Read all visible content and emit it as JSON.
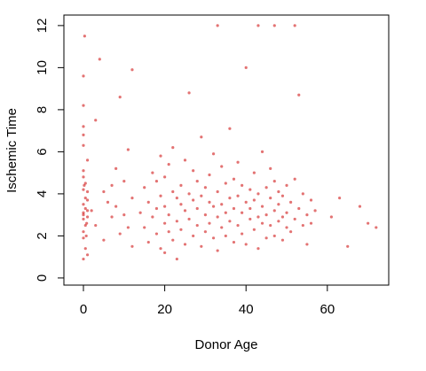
{
  "chart_data": {
    "type": "scatter",
    "xlabel": "Donor Age",
    "ylabel": "Ischemic Time",
    "xlim": [
      -4.8,
      75.1
    ],
    "ylim": [
      -0.34,
      12.5
    ],
    "xticks": [
      0,
      20,
      40,
      60
    ],
    "yticks": [
      0,
      2,
      4,
      6,
      8,
      10,
      12
    ],
    "x": [
      0,
      0,
      0,
      0,
      0,
      0,
      0,
      0,
      0,
      0,
      0.5,
      0.5,
      0.5,
      0.5,
      0.5,
      1,
      1,
      1,
      1,
      1,
      0,
      0,
      0.3,
      0.7,
      0,
      0,
      1,
      0.2,
      0.8,
      0,
      2,
      3,
      4,
      5,
      5,
      6,
      7,
      8,
      8,
      9,
      10,
      10,
      11,
      11,
      12,
      12,
      3,
      7,
      9,
      12,
      14,
      15,
      15,
      16,
      16,
      17,
      17,
      18,
      18,
      18,
      19,
      19,
      19,
      20,
      20,
      20,
      20,
      21,
      21,
      21,
      22,
      22,
      22,
      23,
      23,
      23,
      24,
      24,
      24,
      25,
      25,
      25,
      26,
      26,
      26,
      27,
      27,
      27,
      28,
      28,
      28,
      29,
      29,
      29,
      30,
      30,
      30,
      31,
      31,
      31,
      32,
      32,
      32,
      33,
      33,
      33,
      34,
      34,
      34,
      35,
      35,
      35,
      36,
      36,
      36,
      37,
      37,
      37,
      38,
      38,
      38,
      39,
      39,
      39,
      40,
      40,
      40,
      41,
      41,
      41,
      42,
      42,
      42,
      43,
      43,
      43,
      44,
      44,
      44,
      45,
      45,
      45,
      46,
      46,
      46,
      47,
      47,
      47,
      48,
      48,
      48,
      49,
      49,
      49,
      50,
      50,
      50,
      51,
      51,
      52,
      52,
      53,
      53,
      54,
      54,
      55,
      55,
      56,
      56,
      57,
      33,
      43,
      52,
      61,
      63,
      65,
      68,
      70,
      72,
      47
    ],
    "series": [
      {
        "color": "#cc0000",
        "values": [
          3.5,
          4.2,
          2.8,
          1.9,
          5.1,
          6.3,
          3.1,
          2.2,
          4.8,
          7.2,
          3.8,
          2.5,
          1.4,
          4.5,
          3.3,
          2.9,
          5.6,
          1.1,
          3.7,
          4.1,
          8.2,
          9.6,
          11.5,
          2.0,
          0.9,
          6.8,
          3.2,
          4.4,
          2.6,
          3.0,
          3.2,
          2.5,
          10.4,
          4.1,
          1.8,
          3.6,
          2.9,
          5.2,
          3.4,
          2.1,
          4.6,
          3.0,
          2.4,
          6.1,
          3.8,
          1.5,
          7.5,
          4.4,
          8.6,
          9.9,
          3.1,
          2.4,
          4.3,
          3.6,
          1.7,
          2.9,
          5.0,
          3.3,
          2.1,
          4.6,
          1.4,
          3.9,
          5.8,
          2.6,
          3.4,
          4.8,
          1.2,
          3.0,
          5.4,
          2.2,
          4.1,
          1.8,
          6.2,
          2.7,
          3.8,
          0.9,
          4.4,
          2.3,
          3.5,
          5.6,
          1.6,
          3.2,
          2.8,
          4.0,
          8.8,
          3.7,
          2.0,
          5.1,
          2.5,
          4.6,
          3.3,
          1.5,
          3.9,
          6.7,
          3.0,
          2.2,
          4.3,
          4.9,
          2.6,
          3.6,
          1.9,
          3.4,
          5.9,
          2.9,
          4.1,
          1.3,
          3.5,
          2.4,
          5.3,
          4.5,
          2.0,
          3.1,
          2.7,
          3.8,
          7.1,
          3.3,
          1.7,
          4.7,
          2.5,
          3.9,
          5.5,
          3.1,
          4.4,
          2.1,
          1.6,
          3.6,
          10.0,
          2.8,
          4.2,
          3.3,
          3.7,
          2.3,
          5.0,
          2.9,
          4.0,
          1.4,
          3.4,
          2.6,
          6.0,
          4.3,
          3.0,
          1.9,
          2.5,
          3.8,
          5.2,
          3.2,
          2.0,
          4.6,
          2.7,
          3.5,
          4.1,
          3.9,
          1.8,
          2.9,
          3.1,
          4.4,
          2.4,
          3.6,
          2.2,
          2.8,
          4.7,
          3.3,
          8.7,
          2.5,
          4.0,
          3.0,
          1.6,
          3.7,
          2.6,
          3.2,
          12,
          12,
          12,
          2.9,
          3.8,
          1.5,
          3.4,
          2.6,
          2.4,
          12
        ]
      }
    ]
  }
}
